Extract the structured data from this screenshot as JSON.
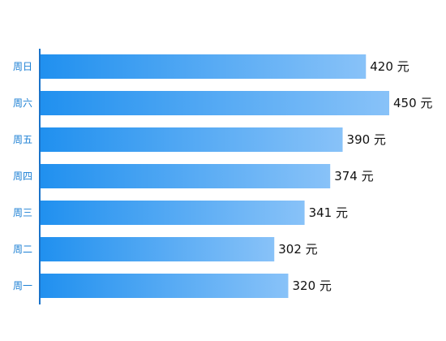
{
  "chart_data": {
    "type": "bar",
    "orientation": "horizontal",
    "categories": [
      "周日",
      "周六",
      "周五",
      "周四",
      "周三",
      "周二",
      "周一"
    ],
    "values": [
      420,
      450,
      390,
      374,
      341,
      302,
      320
    ],
    "value_unit": "元",
    "xlim": [
      0,
      450
    ],
    "grid": false,
    "legend": "none",
    "colors": {
      "bar_start": "#2090ef",
      "bar_end": "#88c2f8",
      "axis": "#1a73c9",
      "tick_label": "#1b7fd4",
      "value_label": "#111111"
    }
  }
}
